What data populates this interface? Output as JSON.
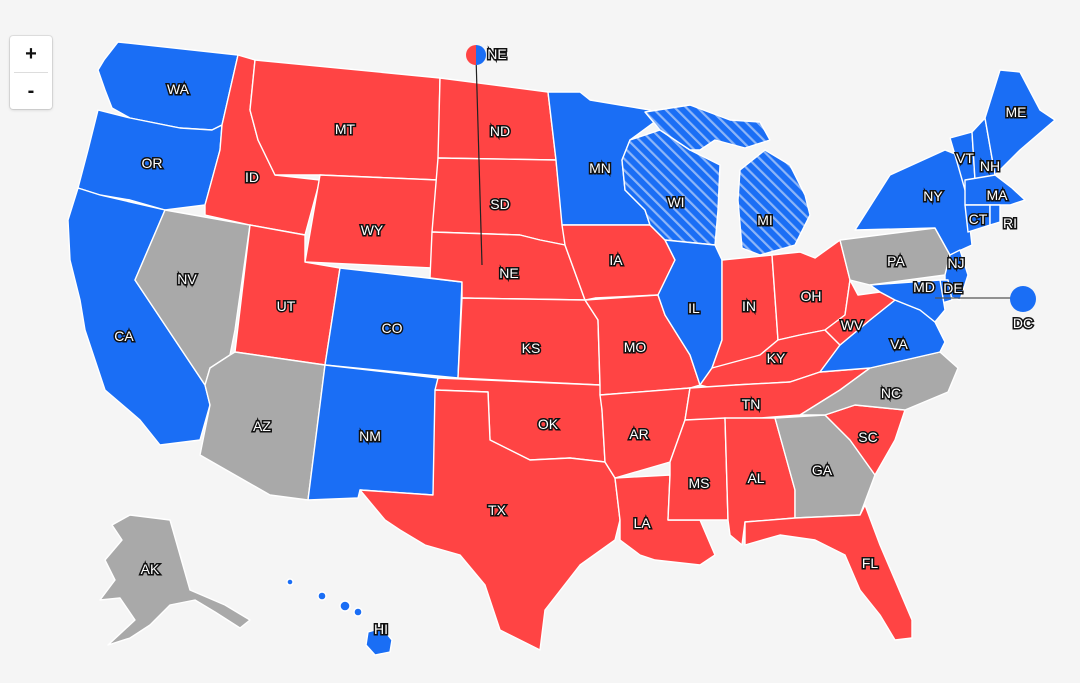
{
  "colors": {
    "red": "#ff4444",
    "blue": "#1a6ef5",
    "gray": "#a9a9a9",
    "background": "#f5f5f5",
    "border": "#ffffff"
  },
  "controls": {
    "zoom_in_label": "+",
    "zoom_out_label": "-"
  },
  "states": {
    "WA": {
      "label": "WA",
      "status": "blue"
    },
    "OR": {
      "label": "OR",
      "status": "blue"
    },
    "CA": {
      "label": "CA",
      "status": "blue"
    },
    "NV": {
      "label": "NV",
      "status": "tossup"
    },
    "ID": {
      "label": "ID",
      "status": "red"
    },
    "MT": {
      "label": "MT",
      "status": "red"
    },
    "WY": {
      "label": "WY",
      "status": "red"
    },
    "UT": {
      "label": "UT",
      "status": "red"
    },
    "AZ": {
      "label": "AZ",
      "status": "tossup"
    },
    "CO": {
      "label": "CO",
      "status": "blue"
    },
    "NM": {
      "label": "NM",
      "status": "blue"
    },
    "ND": {
      "label": "ND",
      "status": "red"
    },
    "SD": {
      "label": "SD",
      "status": "red"
    },
    "NE": {
      "label": "NE",
      "status": "red"
    },
    "KS": {
      "label": "KS",
      "status": "red"
    },
    "OK": {
      "label": "OK",
      "status": "red"
    },
    "TX": {
      "label": "TX",
      "status": "red"
    },
    "MN": {
      "label": "MN",
      "status": "blue"
    },
    "IA": {
      "label": "IA",
      "status": "red"
    },
    "MO": {
      "label": "MO",
      "status": "red"
    },
    "AR": {
      "label": "AR",
      "status": "red"
    },
    "LA": {
      "label": "LA",
      "status": "red"
    },
    "WI": {
      "label": "WI",
      "status": "lean-blue"
    },
    "IL": {
      "label": "IL",
      "status": "blue"
    },
    "MI": {
      "label": "MI",
      "status": "lean-blue"
    },
    "IN": {
      "label": "IN",
      "status": "red"
    },
    "OH": {
      "label": "OH",
      "status": "red"
    },
    "KY": {
      "label": "KY",
      "status": "red"
    },
    "TN": {
      "label": "TN",
      "status": "red"
    },
    "MS": {
      "label": "MS",
      "status": "red"
    },
    "AL": {
      "label": "AL",
      "status": "red"
    },
    "GA": {
      "label": "GA",
      "status": "tossup"
    },
    "FL": {
      "label": "FL",
      "status": "red"
    },
    "SC": {
      "label": "SC",
      "status": "red"
    },
    "NC": {
      "label": "NC",
      "status": "tossup"
    },
    "VA": {
      "label": "VA",
      "status": "blue"
    },
    "WV": {
      "label": "WV",
      "status": "red"
    },
    "PA": {
      "label": "PA",
      "status": "tossup"
    },
    "NY": {
      "label": "NY",
      "status": "blue"
    },
    "VT": {
      "label": "VT",
      "status": "blue"
    },
    "NH": {
      "label": "NH",
      "status": "blue"
    },
    "ME": {
      "label": "ME",
      "status": "blue"
    },
    "MA": {
      "label": "MA",
      "status": "blue"
    },
    "CT": {
      "label": "CT",
      "status": "blue"
    },
    "RI": {
      "label": "RI",
      "status": "blue"
    },
    "NJ": {
      "label": "NJ",
      "status": "blue"
    },
    "DE": {
      "label": "DE",
      "status": "blue"
    },
    "MD": {
      "label": "MD",
      "status": "blue"
    },
    "DC": {
      "label": "DC",
      "status": "blue"
    },
    "AK": {
      "label": "AK",
      "status": "tossup"
    },
    "HI": {
      "label": "HI",
      "status": "blue"
    }
  },
  "callouts": {
    "NE": {
      "label": "NE",
      "left_status": "red",
      "right_status": "blue"
    },
    "DC": {
      "label": "DC",
      "status": "blue"
    }
  }
}
